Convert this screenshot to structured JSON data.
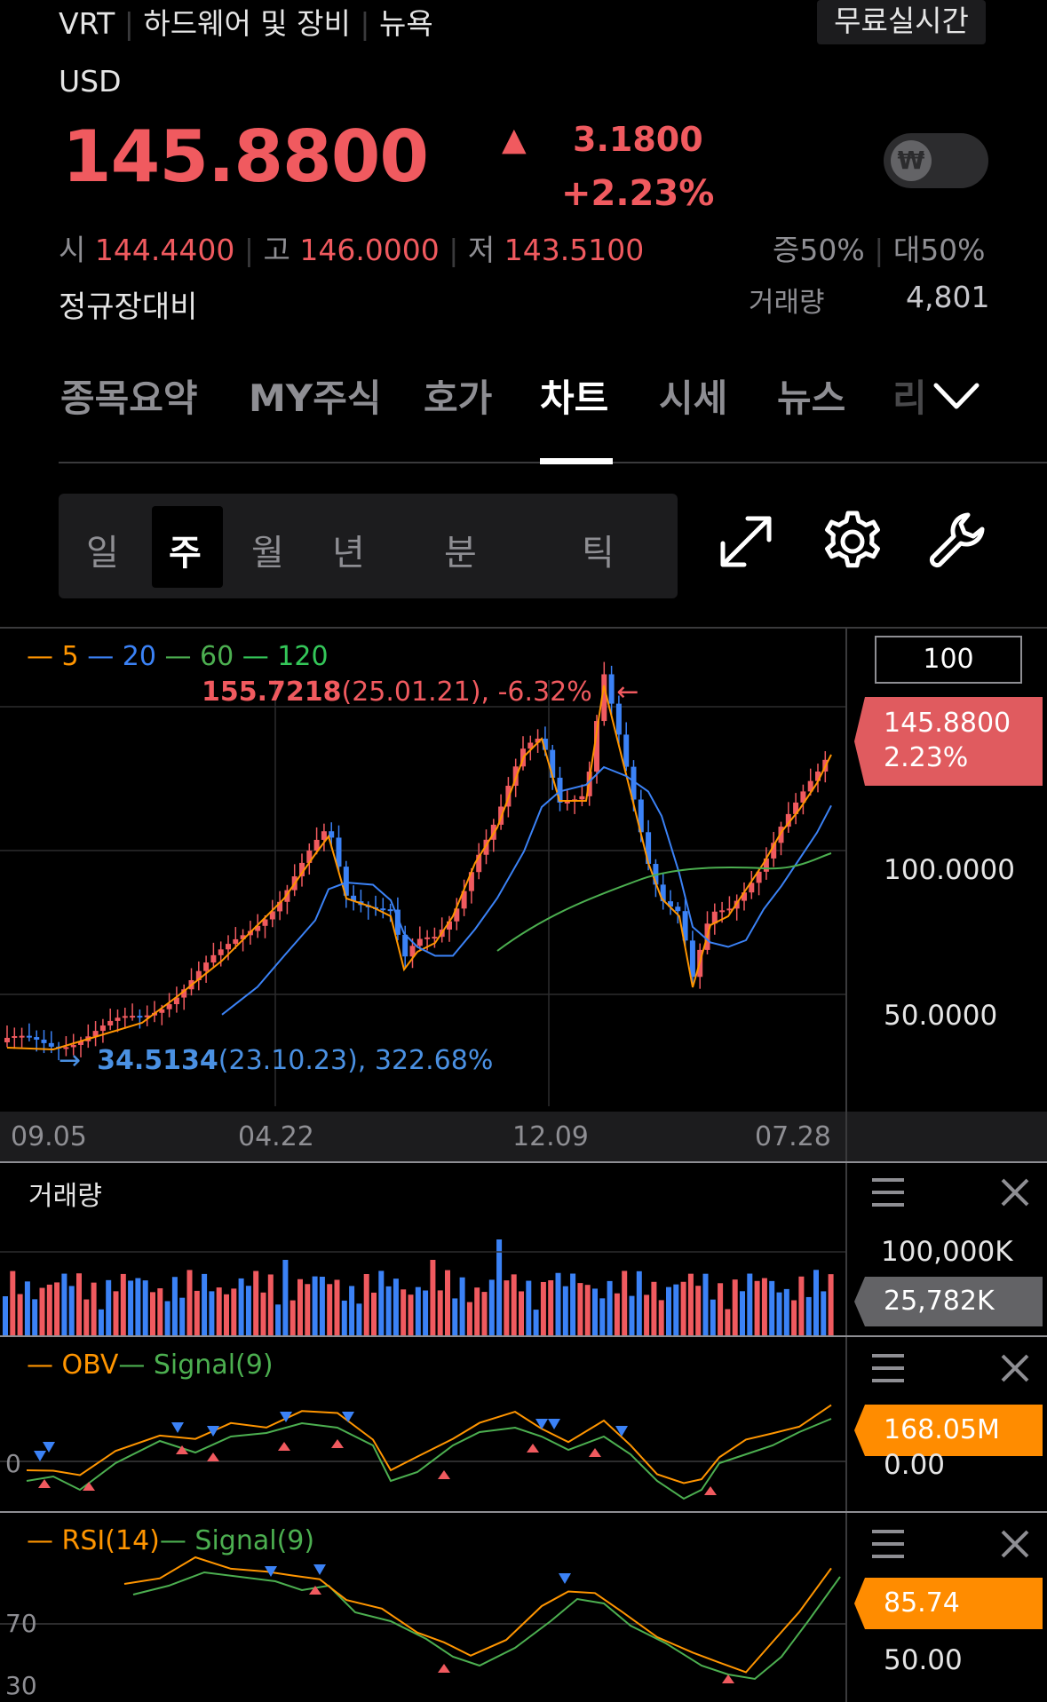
{
  "header": {
    "ticker": "VRT",
    "sector": "하드웨어 및 장비",
    "exchange": "뉴욕",
    "realtime_badge": "무료실시간",
    "currency": "USD",
    "price": "145.8800",
    "change_arrow": "▲",
    "change": "3.1800",
    "change_pct": "+2.23%",
    "toggle_symbol": "₩",
    "open_label": "시",
    "open": "144.4400",
    "high_label": "고",
    "high": "146.0000",
    "low_label": "저",
    "low": "143.5100",
    "increase_ratio": "증50%",
    "decrease_ratio": "대50%",
    "session_label": "정규장대비",
    "volume_label": "거래량",
    "volume": "4,801"
  },
  "tabs": [
    {
      "label": "종목요약"
    },
    {
      "label": "MY주식"
    },
    {
      "label": "호가"
    },
    {
      "label": "차트"
    },
    {
      "label": "시세"
    },
    {
      "label": "뉴스"
    },
    {
      "label": "리"
    }
  ],
  "periods": [
    {
      "label": "일"
    },
    {
      "label": "주"
    },
    {
      "label": "월"
    },
    {
      "label": "년"
    },
    {
      "label": "분"
    },
    {
      "label": "틱"
    }
  ],
  "chart": {
    "legend": [
      {
        "label": "5",
        "color": "#ff9500"
      },
      {
        "label": "20",
        "color": "#3b82f6"
      },
      {
        "label": "60",
        "color": "#4caf50"
      },
      {
        "label": "120",
        "color": "#34c759"
      }
    ],
    "max_value": "155.7218",
    "max_info": "(25.01.21), -6.32%",
    "max_arrow": "←",
    "min_arrow": "→",
    "min_value": "34.5134",
    "min_info": "(23.10.23), 322.68%",
    "period_count": "100",
    "current_price": "145.8800",
    "current_pct": "2.23%",
    "y_labels": [
      "100.0000",
      "50.0000"
    ],
    "x_labels": [
      "09.05",
      "04.22",
      "12.09",
      "07.28"
    ]
  },
  "volume_panel": {
    "title": "거래량",
    "scale": "100,000K",
    "current": "25,782K"
  },
  "obv_panel": {
    "name": "OBV",
    "signal": "Signal(9)",
    "current": "168.05M",
    "baseline": "0.00",
    "zero": "0"
  },
  "rsi_panel": {
    "name": "RSI(14)",
    "signal": "Signal(9)",
    "current": "85.74",
    "baseline": "50.00",
    "level_high": "70",
    "level_low": "30"
  },
  "colors": {
    "up": "#f05a5f",
    "down": "#3b82f6",
    "ma5": "#ff9500",
    "ma20": "#3b82f6",
    "ma60": "#4caf50",
    "badge_orange": "#ff8c00"
  }
}
